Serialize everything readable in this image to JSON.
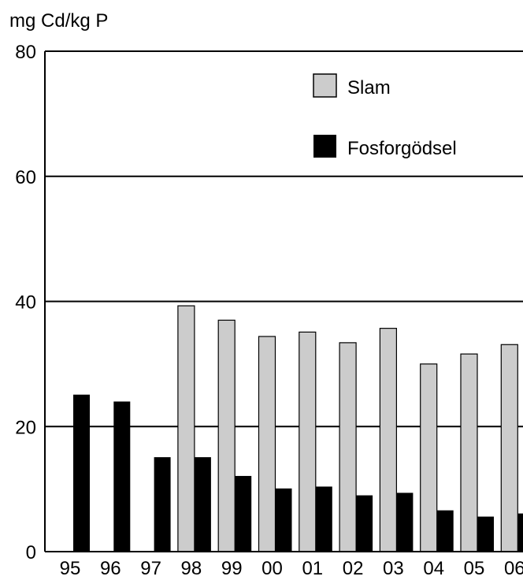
{
  "chart_data": {
    "type": "bar",
    "ylabel": "mg Cd/kg P",
    "xlabel": "",
    "ylim": [
      0,
      80
    ],
    "yticks": [
      0,
      20,
      40,
      60,
      80
    ],
    "grid": "horizontal",
    "legend_placement": "top-right",
    "categories": [
      "95",
      "96",
      "97",
      "98",
      "99",
      "00",
      "01",
      "02",
      "03",
      "04",
      "05",
      "06"
    ],
    "series": [
      {
        "name": "Slam",
        "color": "#cccccc",
        "values": [
          null,
          null,
          null,
          39.3,
          37.0,
          34.4,
          35.1,
          33.4,
          35.7,
          30.0,
          31.6,
          33.1
        ]
      },
      {
        "name": "Fosforgödsel",
        "color": "#000000",
        "values": [
          25.1,
          24.0,
          15.1,
          15.1,
          12.1,
          10.1,
          10.4,
          9.0,
          9.4,
          6.6,
          5.6,
          6.1
        ]
      }
    ]
  }
}
